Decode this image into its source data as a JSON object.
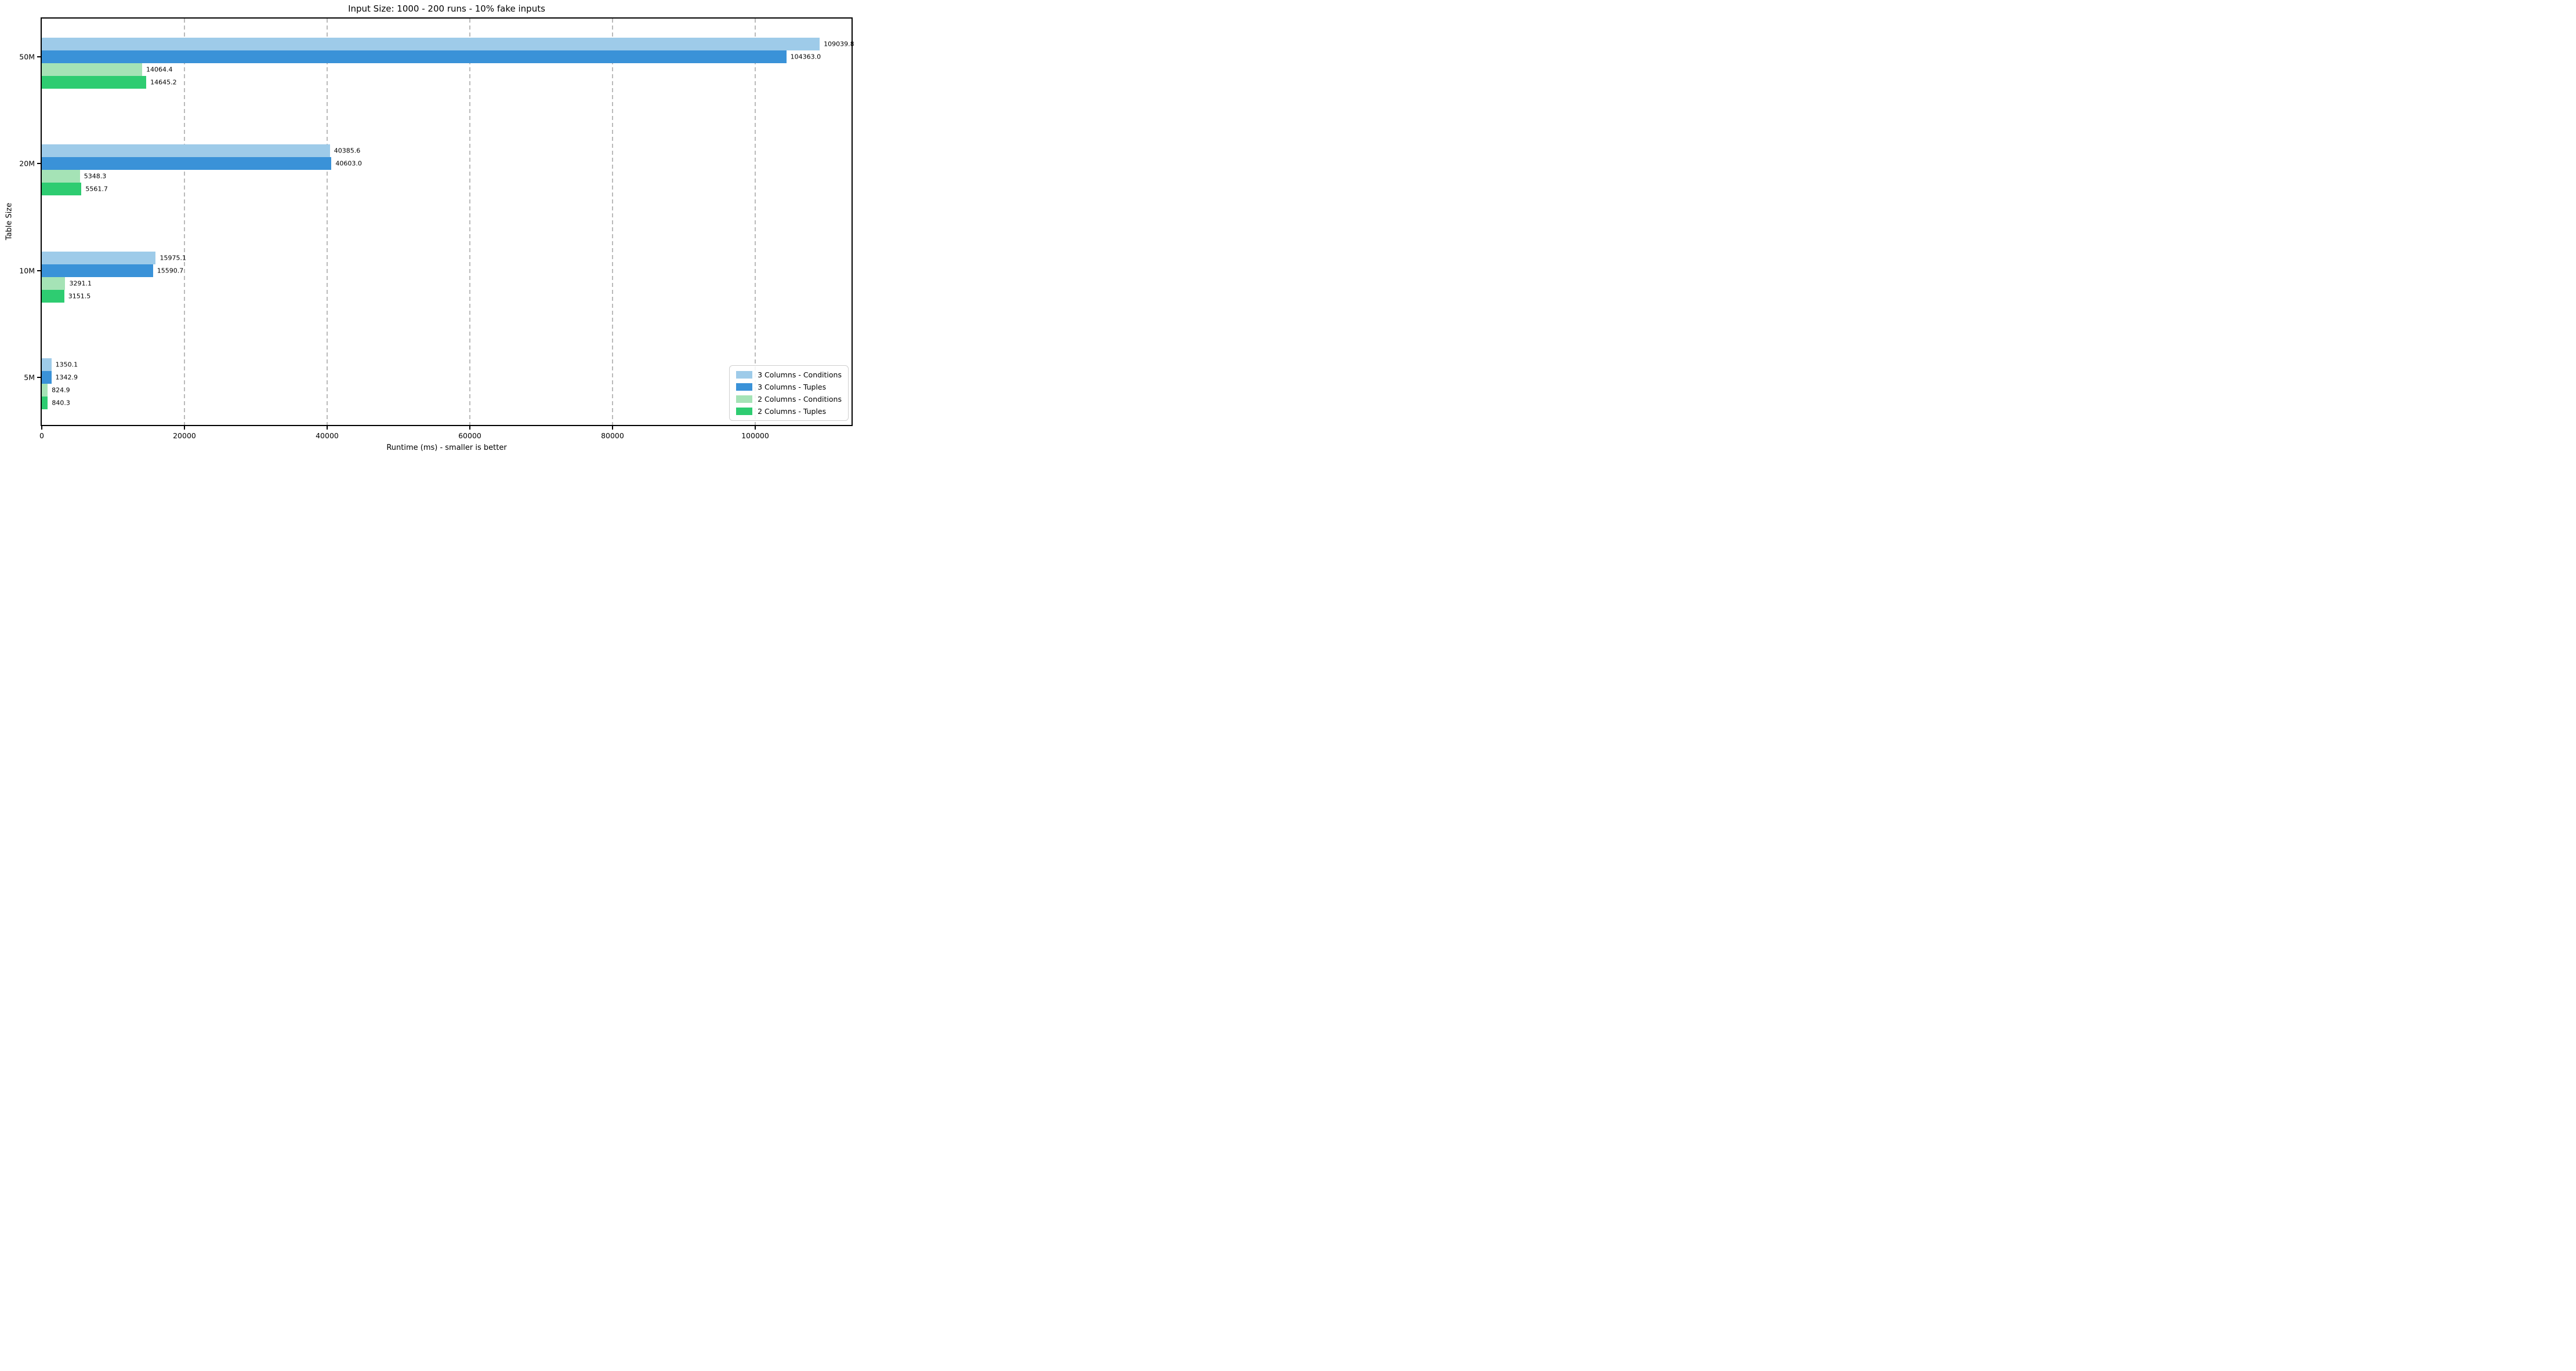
{
  "chart_data": {
    "type": "bar",
    "orientation": "horizontal",
    "title": "Input Size: 1000 - 200 runs - 10% fake inputs",
    "xlabel": "Runtime (ms) - smaller is better",
    "ylabel": "Table Size",
    "categories": [
      "50M",
      "20M",
      "10M",
      "5M"
    ],
    "series": [
      {
        "name": "3 Columns - Conditions",
        "color": "#9ecbe9",
        "values": [
          109039.8,
          40385.6,
          15975.1,
          1350.1
        ],
        "value_labels": [
          "109039.8",
          "40385.6",
          "15975.1",
          "1350.1"
        ]
      },
      {
        "name": "3 Columns - Tuples",
        "color": "#3a92d8",
        "values": [
          104363.0,
          40603.0,
          15590.7,
          1342.9
        ],
        "value_labels": [
          "104363.0",
          "40603.0",
          "15590.7",
          "1342.9"
        ]
      },
      {
        "name": "2 Columns - Conditions",
        "color": "#a5e3b6",
        "values": [
          14064.4,
          5348.3,
          3291.1,
          824.9
        ],
        "value_labels": [
          "14064.4",
          "5348.3",
          "3291.1",
          "824.9"
        ]
      },
      {
        "name": "2 Columns - Tuples",
        "color": "#2ecc71",
        "values": [
          14645.2,
          5561.7,
          3151.5,
          840.3
        ],
        "value_labels": [
          "14645.2",
          "5561.7",
          "3151.5",
          "840.3"
        ]
      }
    ],
    "xlim": [
      0,
      113500
    ],
    "xticks": {
      "values": [
        0,
        20000,
        40000,
        60000,
        80000,
        100000
      ],
      "labels": [
        "0",
        "20000",
        "40000",
        "60000",
        "80000",
        "100000"
      ]
    },
    "grid": {
      "axis": "x",
      "style": "dashed",
      "color": "#bababa"
    },
    "legend": {
      "position": "lower right"
    }
  }
}
